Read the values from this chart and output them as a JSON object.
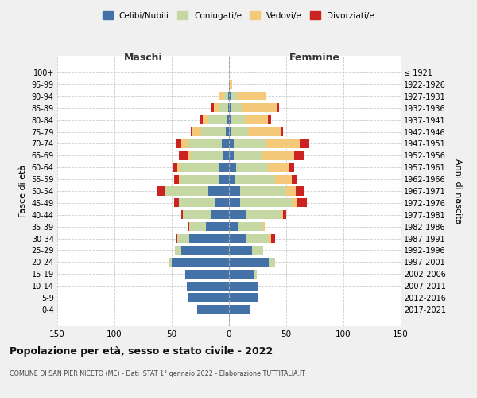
{
  "age_groups": [
    "0-4",
    "5-9",
    "10-14",
    "15-19",
    "20-24",
    "25-29",
    "30-34",
    "35-39",
    "40-44",
    "45-49",
    "50-54",
    "55-59",
    "60-64",
    "65-69",
    "70-74",
    "75-79",
    "80-84",
    "85-89",
    "90-94",
    "95-99",
    "100+"
  ],
  "birth_years": [
    "2017-2021",
    "2012-2016",
    "2007-2011",
    "2002-2006",
    "1997-2001",
    "1992-1996",
    "1987-1991",
    "1982-1986",
    "1977-1981",
    "1972-1976",
    "1967-1971",
    "1962-1966",
    "1957-1961",
    "1952-1956",
    "1947-1951",
    "1942-1946",
    "1937-1941",
    "1932-1936",
    "1927-1931",
    "1922-1926",
    "≤ 1921"
  ],
  "males": {
    "celibi": [
      28,
      36,
      37,
      38,
      50,
      42,
      35,
      20,
      15,
      12,
      18,
      8,
      8,
      5,
      6,
      3,
      2,
      1,
      1,
      0,
      0
    ],
    "coniugati": [
      0,
      0,
      0,
      0,
      2,
      5,
      10,
      15,
      25,
      32,
      38,
      35,
      35,
      28,
      30,
      21,
      16,
      8,
      3,
      0,
      0
    ],
    "vedovi": [
      0,
      0,
      0,
      0,
      0,
      0,
      0,
      0,
      0,
      0,
      0,
      1,
      2,
      3,
      6,
      8,
      5,
      4,
      5,
      0,
      0
    ],
    "divorziati": [
      0,
      0,
      0,
      0,
      0,
      0,
      1,
      1,
      2,
      4,
      7,
      4,
      4,
      8,
      4,
      1,
      2,
      2,
      0,
      0,
      0
    ]
  },
  "females": {
    "nubili": [
      18,
      25,
      25,
      22,
      35,
      20,
      15,
      8,
      15,
      10,
      10,
      5,
      6,
      4,
      4,
      2,
      2,
      2,
      2,
      1,
      0
    ],
    "coniugate": [
      0,
      0,
      0,
      2,
      5,
      10,
      20,
      22,
      30,
      45,
      40,
      35,
      28,
      25,
      28,
      15,
      12,
      10,
      5,
      0,
      0
    ],
    "vedove": [
      0,
      0,
      0,
      0,
      0,
      0,
      2,
      1,
      2,
      5,
      8,
      15,
      18,
      28,
      30,
      28,
      20,
      30,
      25,
      2,
      1
    ],
    "divorziate": [
      0,
      0,
      0,
      0,
      0,
      0,
      3,
      0,
      3,
      8,
      8,
      5,
      5,
      8,
      8,
      2,
      3,
      2,
      0,
      0,
      0
    ]
  },
  "colors": {
    "celibi": "#4472a8",
    "coniugati": "#c5d8a4",
    "vedovi": "#f5c97a",
    "divorziati": "#cc2222"
  },
  "xlim": 150,
  "title": "Popolazione per età, sesso e stato civile - 2022",
  "subtitle": "COMUNE DI SAN PIER NICETO (ME) - Dati ISTAT 1° gennaio 2022 - Elaborazione TUTTITALIA.IT",
  "ylabel_left": "Fasce di età",
  "ylabel_right": "Anni di nascita",
  "legend_labels": [
    "Celibi/Nubili",
    "Coniugati/e",
    "Vedovi/e",
    "Divorziati/e"
  ],
  "maschi_label": "Maschi",
  "femmine_label": "Femmine",
  "bg_color": "#f0f0f0",
  "plot_bg_color": "#ffffff"
}
